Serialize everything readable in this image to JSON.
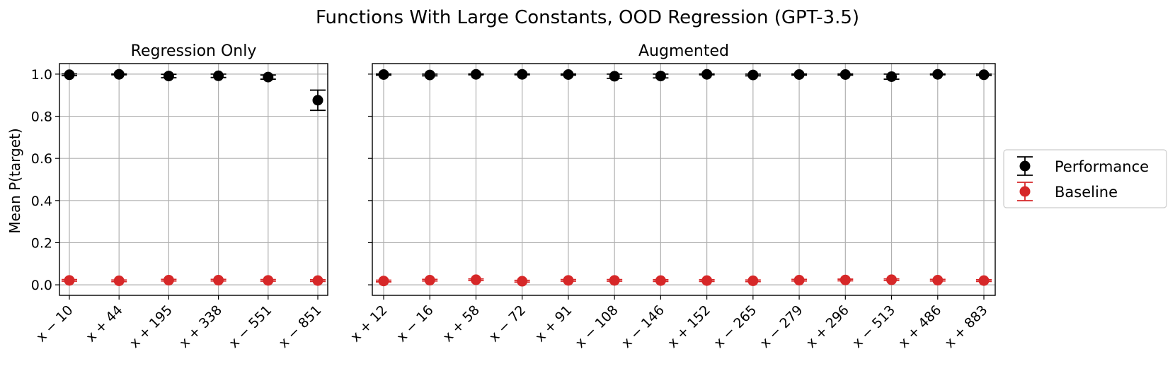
{
  "title": "Functions With Large Constants, OOD Regression (GPT-3.5)",
  "ylabel": "Mean P(target)",
  "colors": {
    "performance": "#000000",
    "baseline": "#d62728",
    "grid": "#b0b0b0"
  },
  "legend": {
    "placement": "right",
    "entries": [
      {
        "name": "Performance",
        "color": "#000000"
      },
      {
        "name": "Baseline",
        "color": "#d62728"
      }
    ]
  },
  "chart_data": [
    {
      "type": "scatter",
      "subplot_title": "Regression Only",
      "ylim": [
        -0.05,
        1.05
      ],
      "yticks": [
        "0.0",
        "0.2",
        "0.4",
        "0.6",
        "0.8",
        "1.0"
      ],
      "grid": true,
      "categories": [
        "x − 10",
        "x + 44",
        "x + 195",
        "x + 338",
        "x − 551",
        "x − 851"
      ],
      "series": [
        {
          "name": "Performance",
          "values": [
            0.997,
            0.999,
            0.991,
            0.992,
            0.986,
            0.876
          ],
          "errors": [
            0.004,
            0.002,
            0.008,
            0.008,
            0.01,
            0.048
          ]
        },
        {
          "name": "Baseline",
          "values": [
            0.021,
            0.019,
            0.022,
            0.022,
            0.021,
            0.02
          ],
          "errors": [
            0.004,
            0.004,
            0.004,
            0.004,
            0.004,
            0.004
          ]
        }
      ]
    },
    {
      "type": "scatter",
      "subplot_title": "Augmented",
      "ylim": [
        -0.05,
        1.05
      ],
      "yticks": [
        "0.0",
        "0.2",
        "0.4",
        "0.6",
        "0.8",
        "1.0"
      ],
      "grid": true,
      "categories": [
        "x + 12",
        "x − 16",
        "x + 58",
        "x − 72",
        "x + 91",
        "x − 108",
        "x − 146",
        "x + 152",
        "x − 265",
        "x − 279",
        "x + 296",
        "x − 513",
        "x + 486",
        "x + 883"
      ],
      "series": [
        {
          "name": "Performance",
          "values": [
            0.998,
            0.996,
            0.999,
            0.999,
            0.998,
            0.99,
            0.991,
            0.999,
            0.996,
            0.998,
            0.998,
            0.988,
            0.999,
            0.997
          ],
          "errors": [
            0.003,
            0.004,
            0.002,
            0.002,
            0.003,
            0.01,
            0.009,
            0.002,
            0.004,
            0.003,
            0.003,
            0.012,
            0.002,
            0.003
          ]
        },
        {
          "name": "Baseline",
          "values": [
            0.018,
            0.022,
            0.024,
            0.017,
            0.021,
            0.021,
            0.02,
            0.02,
            0.019,
            0.022,
            0.023,
            0.024,
            0.022,
            0.02
          ],
          "errors": [
            0.004,
            0.004,
            0.004,
            0.004,
            0.004,
            0.004,
            0.004,
            0.004,
            0.004,
            0.004,
            0.004,
            0.004,
            0.004,
            0.004
          ]
        }
      ]
    }
  ]
}
